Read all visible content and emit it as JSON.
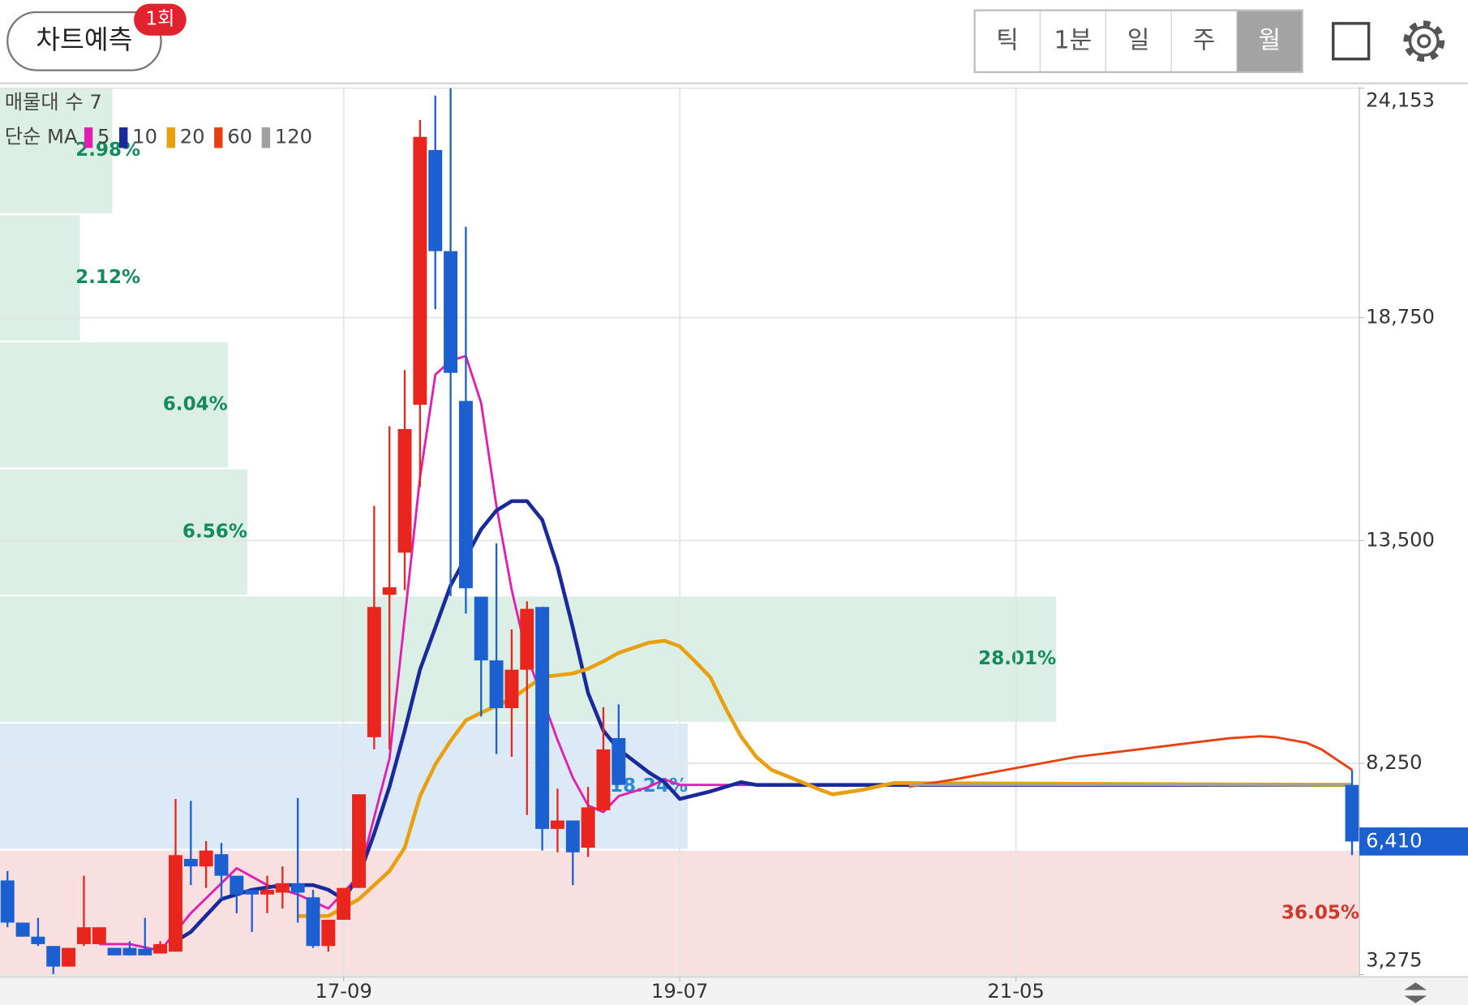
{
  "header": {
    "button": "차트예측",
    "badge": "1회",
    "tabs": [
      "틱",
      "1분",
      "일",
      "주",
      "월"
    ],
    "selected_tab": 4
  },
  "chart_data": {
    "type": "candlestick",
    "x": [
      -22,
      -21,
      -20,
      -19,
      -18,
      -17,
      -16,
      -15,
      -14,
      -13,
      -12,
      -11,
      -10,
      -9,
      -8,
      -7,
      -6,
      -5,
      -4,
      -3,
      -2,
      -1,
      0,
      1,
      2,
      3,
      4,
      5,
      6,
      7,
      8,
      9,
      10,
      11,
      12,
      13,
      14,
      15,
      16,
      17,
      18,
      66
    ],
    "open": [
      5492,
      4499,
      4168,
      3948,
      3463,
      3992,
      3992,
      3904,
      3904,
      3882,
      3771,
      3815,
      6000,
      5823,
      6110,
      5603,
      5272,
      5161,
      5205,
      5426,
      5095,
      3948,
      4566,
      5316,
      8867,
      12221,
      13213,
      16699,
      22698,
      20316,
      16787,
      12176,
      10676,
      9551,
      10456,
      11934,
      6706,
      6904,
      6265,
      7147,
      8845,
      7742
    ],
    "high": [
      5713,
      4499,
      4610,
      3948,
      3904,
      5603,
      4389,
      3904,
      4059,
      4610,
      4059,
      7411,
      7367,
      6419,
      6375,
      5603,
      5272,
      5603,
      5823,
      7433,
      5272,
      4566,
      5316,
      7522,
      14316,
      16191,
      17515,
      23405,
      23979,
      24153,
      20890,
      12176,
      13434,
      11404,
      12066,
      11934,
      7654,
      6904,
      7698,
      9573,
      9639,
      8095
    ],
    "low": [
      4389,
      4168,
      3948,
      3286,
      3463,
      3948,
      3992,
      3727,
      3727,
      3727,
      3771,
      3815,
      5382,
      5316,
      5051,
      4720,
      4279,
      4720,
      4830,
      4500,
      3904,
      3815,
      4566,
      5316,
      8580,
      8580,
      12331,
      14757,
      18949,
      12187,
      11779,
      9352,
      8470,
      8404,
      7037,
      6198,
      6154,
      5382,
      6044,
      7147,
      7742,
      6088
    ],
    "close": [
      4499,
      4168,
      3992,
      3463,
      3904,
      4389,
      4389,
      3727,
      3727,
      3727,
      3992,
      6088,
      5823,
      6198,
      5603,
      5161,
      5161,
      5272,
      5426,
      5205,
      3948,
      4566,
      5316,
      7522,
      11934,
      12397,
      16125,
      23008,
      20316,
      17449,
      12375,
      10676,
      9551,
      10456,
      11890,
      6706,
      6904,
      6154,
      7213,
      8580,
      7742,
      6410
    ],
    "up_color": "#e8261e",
    "down_color": "#1b5fd0",
    "legend_title": "단순 MA",
    "series": [
      {
        "name": "5",
        "color": "#e020b0",
        "x": [
          -16,
          -14,
          -12,
          -10,
          -7,
          -5,
          -3,
          -1,
          1,
          3,
          4,
          5,
          6,
          7,
          8,
          9,
          10,
          11,
          12,
          13,
          14,
          15,
          16,
          17,
          18,
          20,
          21,
          22,
          66
        ],
        "values": [
          3992,
          3992,
          3838,
          4720,
          5779,
          5382,
          5161,
          4830,
          5603,
          8360,
          11669,
          14978,
          17405,
          17736,
          17846,
          16743,
          14316,
          12331,
          10787,
          9793,
          8801,
          7918,
          7257,
          7103,
          7478,
          7698,
          7874,
          7742,
          7742
        ]
      },
      {
        "name": "10",
        "color": "#1a2a9a",
        "x": [
          -11,
          -10,
          -8,
          -6,
          -4,
          -2,
          -1,
          0,
          1,
          2,
          3,
          4,
          5,
          6,
          7,
          8,
          9,
          10,
          11,
          12,
          13,
          14,
          15,
          16,
          17,
          18,
          20,
          21,
          22,
          24,
          26,
          27,
          66
        ],
        "values": [
          4059,
          4279,
          5051,
          5272,
          5382,
          5382,
          5272,
          5051,
          5603,
          6596,
          7698,
          9021,
          10456,
          11449,
          12441,
          13103,
          13765,
          14206,
          14427,
          14427,
          13985,
          12882,
          11449,
          9904,
          9021,
          8580,
          8029,
          7808,
          7411,
          7588,
          7808,
          7742,
          7742
        ]
      },
      {
        "name": "20",
        "color": "#e8a010",
        "x": [
          -3,
          -1,
          1,
          3,
          4,
          5,
          6,
          7,
          8,
          9,
          11,
          13,
          15,
          16,
          17,
          18,
          20,
          21,
          22,
          23,
          24,
          25,
          26,
          27,
          28,
          30,
          31,
          32,
          34,
          36,
          66
        ],
        "values": [
          4654,
          4654,
          5051,
          5713,
          6264,
          7477,
          8227,
          8779,
          9264,
          9441,
          9772,
          10280,
          10368,
          10478,
          10654,
          10853,
          11095,
          11139,
          11007,
          10654,
          10280,
          9551,
          8889,
          8404,
          8095,
          7808,
          7654,
          7521,
          7631,
          7786,
          7742
        ]
      },
      {
        "name": "60",
        "color": "#e84010",
        "x": [
          37,
          40,
          44,
          48,
          52,
          56,
          58,
          60,
          61,
          63,
          64,
          66
        ],
        "values": [
          7698,
          7874,
          8139,
          8404,
          8580,
          8757,
          8845,
          8889,
          8867,
          8735,
          8580,
          8095
        ]
      },
      {
        "name": "120",
        "color": "#a0a0a0",
        "x": [
          37,
          66
        ],
        "values": [
          7742,
          7742
        ]
      }
    ],
    "volume_profile": {
      "title": "매물대 수 7",
      "values": [
        2.98,
        2.12,
        6.04,
        6.56,
        28.01,
        18.24,
        36.05
      ],
      "value_labels": [
        "2.98%",
        "2.12%",
        "6.04%",
        "6.56%",
        "28.01%",
        "18.24%",
        "36.05%"
      ],
      "colors": [
        "#dcefe6",
        "#dcefe6",
        "#dcefe6",
        "#dcefe6",
        "#dcefe6",
        "#dce9f7",
        "#f8dfe0"
      ],
      "label_colors": [
        "#148a5e",
        "#148a5e",
        "#148a5e",
        "#148a5e",
        "#148a5e",
        "#2a8ad0",
        "#cc3a2a"
      ]
    },
    "xlim": [
      -22.49,
      66.48
    ],
    "xticks": [
      {
        "value": 0,
        "label": "17-09"
      },
      {
        "value": 22,
        "label": "19-07"
      },
      {
        "value": 44,
        "label": "21-05"
      }
    ],
    "ylim": [
      3220,
      24180
    ],
    "yticks": [
      {
        "value": 24153,
        "label": "24,153"
      },
      {
        "value": 18750,
        "label": "18,750"
      },
      {
        "value": 13500,
        "label": "13,500"
      },
      {
        "value": 8250,
        "label": "8,250"
      },
      {
        "value": 3275,
        "label": "3,275"
      }
    ],
    "last_price": {
      "value": 6410,
      "label": "6,410",
      "color": "#1b5fd0"
    },
    "grid": true
  }
}
